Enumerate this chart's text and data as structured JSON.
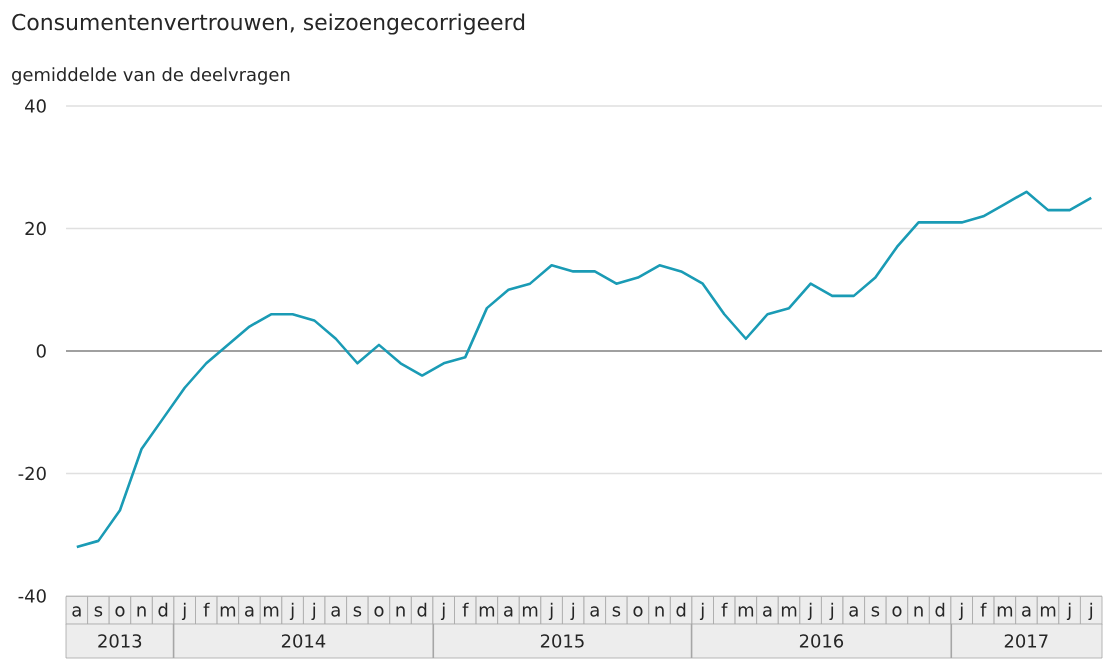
{
  "chart_data": {
    "type": "line",
    "title": "Consumentenvertrouwen, seizoengecorrigeerd",
    "subtitle": "gemiddelde van de deelvragen",
    "categories": [
      "a",
      "s",
      "o",
      "n",
      "d",
      "j",
      "f",
      "m",
      "a",
      "m",
      "j",
      "j",
      "a",
      "s",
      "o",
      "n",
      "d",
      "j",
      "f",
      "m",
      "a",
      "m",
      "j",
      "j",
      "a",
      "s",
      "o",
      "n",
      "d",
      "j",
      "f",
      "m",
      "a",
      "m",
      "j",
      "j",
      "a",
      "s",
      "o",
      "n",
      "d",
      "j",
      "f",
      "m",
      "a",
      "m",
      "j",
      "j"
    ],
    "series": [
      {
        "color": "#1a9bb5",
        "values": [
          -32,
          -31,
          -26,
          -16,
          -11,
          -6,
          -2,
          1,
          4,
          6,
          6,
          5,
          2,
          -2,
          1,
          -2,
          -4,
          -2,
          -1,
          7,
          10,
          11,
          14,
          13,
          13,
          11,
          12,
          14,
          13,
          11,
          6,
          2,
          6,
          7,
          11,
          9,
          9,
          12,
          17,
          21,
          21,
          21,
          22,
          24,
          26,
          23,
          23,
          25
        ]
      }
    ],
    "x2lim": [
      "2013-08-01",
      "2017-08-01"
    ],
    "x2ticks": [
      {
        "value": "2013-10-16",
        "label": "2013"
      },
      {
        "value": "2014-07-01",
        "label": "2014"
      },
      {
        "value": "2015-07-01",
        "label": "2015"
      },
      {
        "value": "2016-07-01",
        "label": "2016"
      },
      {
        "value": "2017-04-16",
        "label": "2017"
      }
    ],
    "ylim": [
      -40,
      40
    ],
    "yticks": [
      -40,
      -20,
      0,
      20,
      40
    ],
    "grid": "y",
    "ref_lines": [
      {
        "axis": "y",
        "value": 0,
        "color": "#a0a0a0"
      }
    ]
  }
}
